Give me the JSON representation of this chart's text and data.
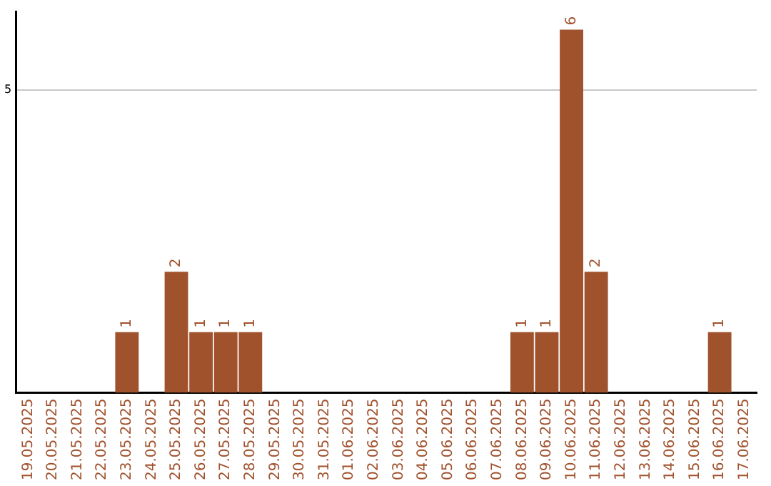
{
  "chart_data": {
    "type": "bar",
    "categories": [
      "19.05.2025",
      "20.05.2025",
      "21.05.2025",
      "22.05.2025",
      "23.05.2025",
      "24.05.2025",
      "25.05.2025",
      "26.05.2025",
      "27.05.2025",
      "28.05.2025",
      "29.05.2025",
      "30.05.2025",
      "31.05.2025",
      "01.06.2025",
      "02.06.2025",
      "03.06.2025",
      "04.06.2025",
      "05.06.2025",
      "06.06.2025",
      "07.06.2025",
      "08.06.2025",
      "09.06.2025",
      "10.06.2025",
      "11.06.2025",
      "12.06.2025",
      "13.06.2025",
      "14.06.2025",
      "15.06.2025",
      "16.06.2025",
      "17.06.2025"
    ],
    "values": [
      0,
      0,
      0,
      0,
      1,
      0,
      2,
      1,
      1,
      1,
      0,
      0,
      0,
      0,
      0,
      0,
      0,
      0,
      0,
      0,
      1,
      1,
      6,
      2,
      0,
      0,
      0,
      0,
      1,
      0
    ],
    "value_labels": [
      null,
      null,
      null,
      null,
      "1",
      null,
      "2",
      "1",
      "1",
      "1",
      null,
      null,
      null,
      null,
      null,
      null,
      null,
      null,
      null,
      null,
      "1",
      "1",
      "6",
      "2",
      null,
      null,
      null,
      null,
      "1",
      null
    ],
    "color": "#a0522d",
    "ylim": [
      0,
      6.3
    ],
    "yticks": [
      5
    ],
    "grid": "y",
    "legend": false
  }
}
